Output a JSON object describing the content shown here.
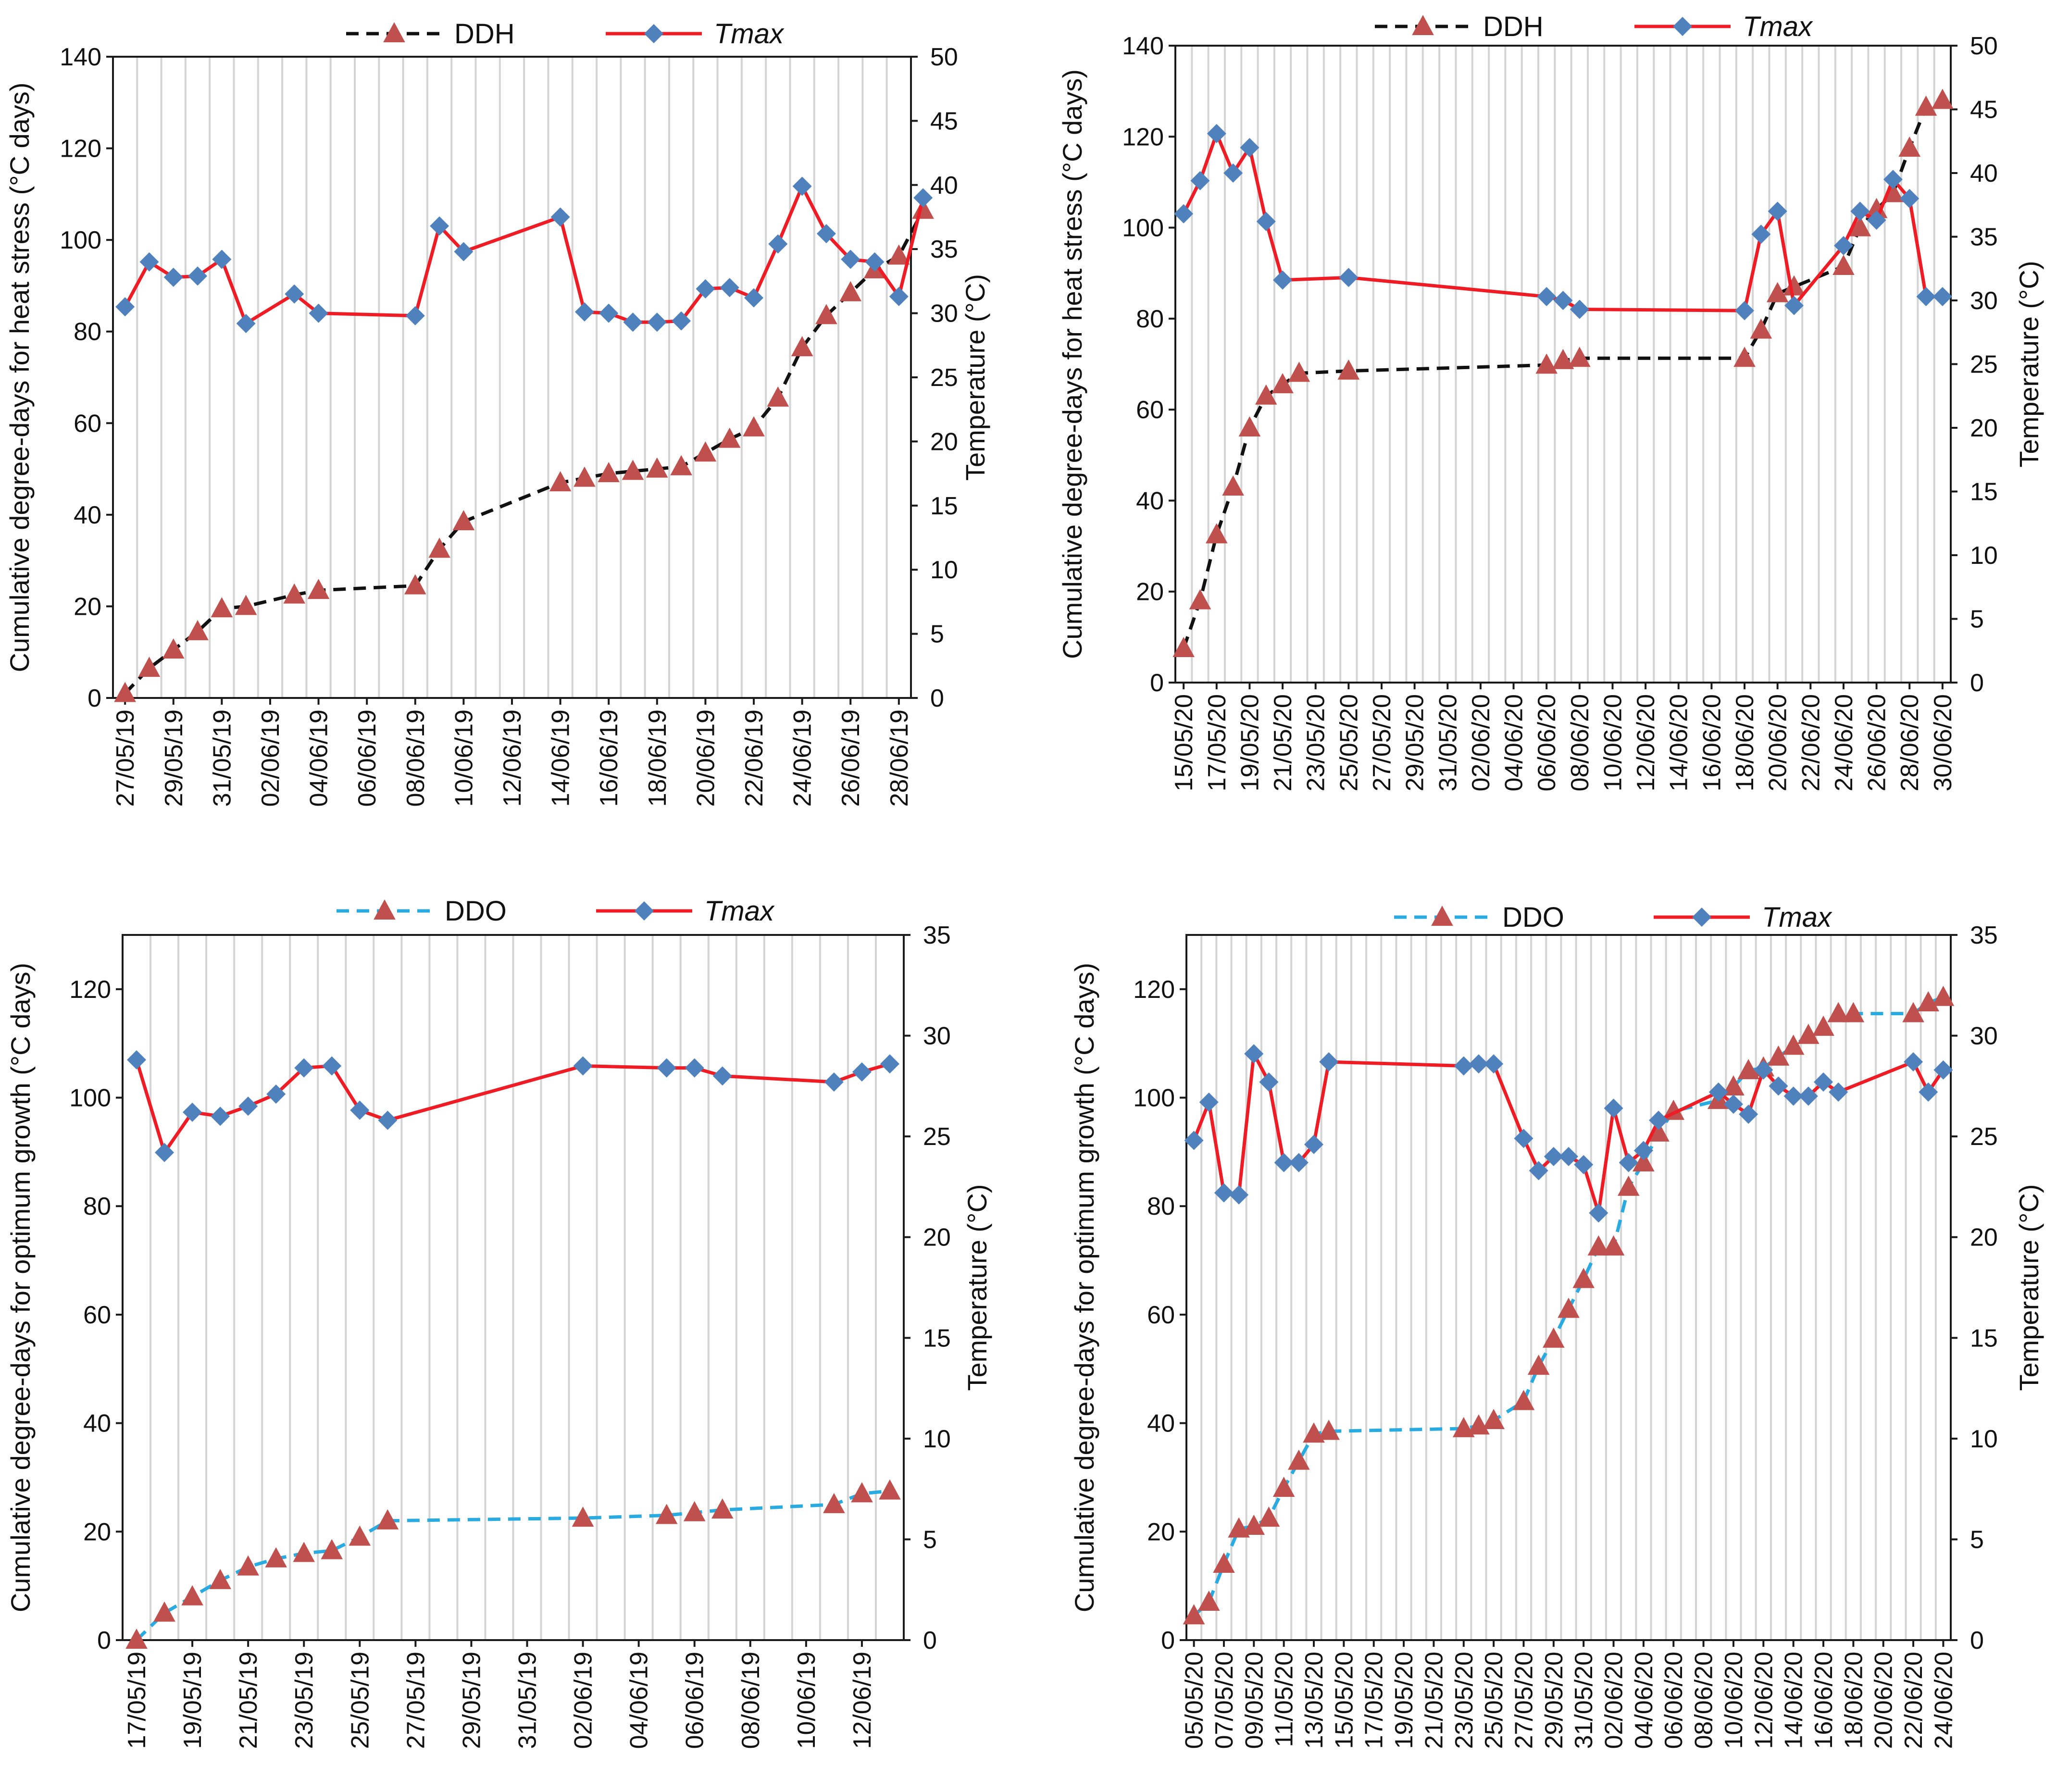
{
  "colors": {
    "ddh_line": "#111111",
    "ddo_line": "#29abe2",
    "tmax_line": "#ee1c25",
    "triangle": "#c0504d",
    "diamond": "#4f81bd"
  },
  "chart_data": [
    {
      "type": "line",
      "position": "top-left",
      "ylabel": "Cumulative degree-days for heat stress (°C days)",
      "y2label": "Temperature (°C)",
      "ylim": [
        0,
        140
      ],
      "ystep": 20,
      "y2lim": [
        0,
        50
      ],
      "y2step": 5,
      "xlim": [
        0,
        32
      ],
      "xticks": [
        {
          "i": 0,
          "label": "27/05/19"
        },
        {
          "i": 2,
          "label": "29/05/19"
        },
        {
          "i": 4,
          "label": "31/05/19"
        },
        {
          "i": 6,
          "label": "02/06/19"
        },
        {
          "i": 8,
          "label": "04/06/19"
        },
        {
          "i": 10,
          "label": "06/06/19"
        },
        {
          "i": 12,
          "label": "08/06/19"
        },
        {
          "i": 14,
          "label": "10/06/19"
        },
        {
          "i": 16,
          "label": "12/06/19"
        },
        {
          "i": 18,
          "label": "14/06/19"
        },
        {
          "i": 20,
          "label": "16/06/19"
        },
        {
          "i": 22,
          "label": "18/06/19"
        },
        {
          "i": 24,
          "label": "20/06/19"
        },
        {
          "i": 26,
          "label": "22/06/19"
        },
        {
          "i": 28,
          "label": "24/06/19"
        },
        {
          "i": 30,
          "label": "26/06/19"
        },
        {
          "i": 32,
          "label": "28/06/19"
        }
      ],
      "legend": [
        "DDH",
        "Tmax"
      ],
      "series": [
        {
          "name": "DDH",
          "axis": "left",
          "style": "dashed",
          "marker": "triangle",
          "x": [
            0,
            1,
            2,
            3,
            4,
            5,
            7,
            8,
            12,
            13,
            14,
            18,
            19,
            20,
            21,
            22,
            23,
            24,
            25,
            26,
            27,
            28,
            29,
            30,
            31,
            32,
            33
          ],
          "values": [
            1,
            6.5,
            10.5,
            14.5,
            19.5,
            20,
            22.5,
            23.5,
            24.5,
            32.5,
            38.5,
            47,
            48,
            49,
            49.5,
            50,
            50.5,
            53.5,
            56.5,
            59,
            65.5,
            76.5,
            83.5,
            88.5,
            93.5,
            96.5,
            106.5
          ]
        },
        {
          "name": "Tmax",
          "axis": "right",
          "style": "solid",
          "marker": "diamond",
          "x": [
            0,
            1,
            2,
            3,
            4,
            5,
            7,
            8,
            12,
            13,
            14,
            18,
            19,
            20,
            21,
            22,
            23,
            24,
            25,
            26,
            27,
            28,
            29,
            30,
            31,
            32,
            33
          ],
          "values": [
            30.5,
            34,
            32.8,
            32.9,
            34.2,
            29.2,
            31.5,
            30,
            29.8,
            36.8,
            34.8,
            37.5,
            30.1,
            30,
            29.3,
            29.3,
            29.4,
            31.9,
            32,
            31.2,
            35.4,
            39.9,
            36.2,
            34.2,
            34,
            31.3,
            39
          ]
        }
      ]
    },
    {
      "type": "line",
      "position": "top-right",
      "ylabel": "Cumulative degree-days for heat stress (°C days)",
      "y2label": "Temperature (°C)",
      "ylim": [
        0,
        140
      ],
      "ystep": 20,
      "y2lim": [
        0,
        50
      ],
      "y2step": 5,
      "xlim": [
        0,
        46
      ],
      "xticks": [
        {
          "i": 0,
          "label": "15/05/20"
        },
        {
          "i": 2,
          "label": "17/05/20"
        },
        {
          "i": 4,
          "label": "19/05/20"
        },
        {
          "i": 6,
          "label": "21/05/20"
        },
        {
          "i": 8,
          "label": "23/05/20"
        },
        {
          "i": 10,
          "label": "25/05/20"
        },
        {
          "i": 12,
          "label": "27/05/20"
        },
        {
          "i": 14,
          "label": "29/05/20"
        },
        {
          "i": 16,
          "label": "31/05/20"
        },
        {
          "i": 18,
          "label": "02/06/20"
        },
        {
          "i": 20,
          "label": "04/06/20"
        },
        {
          "i": 22,
          "label": "06/06/20"
        },
        {
          "i": 24,
          "label": "08/06/20"
        },
        {
          "i": 26,
          "label": "10/06/20"
        },
        {
          "i": 28,
          "label": "12/06/20"
        },
        {
          "i": 30,
          "label": "14/06/20"
        },
        {
          "i": 32,
          "label": "16/06/20"
        },
        {
          "i": 34,
          "label": "18/06/20"
        },
        {
          "i": 36,
          "label": "20/06/20"
        },
        {
          "i": 38,
          "label": "22/06/20"
        },
        {
          "i": 40,
          "label": "24/06/20"
        },
        {
          "i": 42,
          "label": "26/06/20"
        },
        {
          "i": 44,
          "label": "28/06/20"
        },
        {
          "i": 46,
          "label": "30/06/20"
        }
      ],
      "legend": [
        "DDH",
        "Tmax"
      ],
      "series": [
        {
          "name": "DDH",
          "axis": "left",
          "style": "dashed",
          "marker": "triangle",
          "x": [
            0,
            1,
            2,
            3,
            4,
            5,
            6,
            7,
            10,
            22,
            23,
            24,
            34,
            35,
            36,
            37,
            40,
            41,
            42,
            43,
            44,
            45,
            46
          ],
          "values": [
            7.5,
            18,
            32.5,
            43,
            56,
            63,
            65.5,
            68,
            68.5,
            69.8,
            70.8,
            71.3,
            71.3,
            77.5,
            85.5,
            87,
            91.5,
            100,
            104,
            107.5,
            117.5,
            126.5,
            128
          ]
        },
        {
          "name": "Tmax",
          "axis": "right",
          "style": "solid",
          "marker": "diamond",
          "x": [
            0,
            1,
            2,
            3,
            4,
            5,
            6,
            10,
            22,
            23,
            24,
            34,
            35,
            36,
            37,
            40,
            41,
            42,
            43,
            44,
            45,
            46
          ],
          "values": [
            36.8,
            39.4,
            43.1,
            40,
            42,
            36.2,
            31.6,
            31.8,
            30.3,
            30,
            29.3,
            29.2,
            35.2,
            37,
            29.6,
            34.3,
            37,
            36.3,
            39.5,
            38,
            30.3,
            30.3
          ]
        }
      ]
    },
    {
      "type": "line",
      "position": "bottom-left",
      "ylabel": "Cumulative degree-days for optimum growth (°C days)",
      "y2label": "Temperature (°C)",
      "ylim": [
        0,
        130
      ],
      "ystep": 20,
      "y2lim": [
        0,
        35
      ],
      "y2step": 5,
      "xlim": [
        0,
        27
      ],
      "xticks": [
        {
          "i": 0,
          "label": "17/05/19"
        },
        {
          "i": 2,
          "label": "19/05/19"
        },
        {
          "i": 4,
          "label": "21/05/19"
        },
        {
          "i": 6,
          "label": "23/05/19"
        },
        {
          "i": 8,
          "label": "25/05/19"
        },
        {
          "i": 10,
          "label": "27/05/19"
        },
        {
          "i": 12,
          "label": "29/05/19"
        },
        {
          "i": 14,
          "label": "31/05/19"
        },
        {
          "i": 16,
          "label": "02/06/19"
        },
        {
          "i": 18,
          "label": "04/06/19"
        },
        {
          "i": 20,
          "label": "06/06/19"
        },
        {
          "i": 22,
          "label": "08/06/19"
        },
        {
          "i": 24,
          "label": "10/06/19"
        },
        {
          "i": 26,
          "label": "12/06/19"
        }
      ],
      "legend": [
        "DDO",
        "Tmax"
      ],
      "series": [
        {
          "name": "DDO",
          "axis": "left",
          "style": "dashed",
          "marker": "triangle",
          "x": [
            0,
            1,
            2,
            3,
            4,
            5,
            6,
            7,
            8,
            9,
            16,
            19,
            20,
            21,
            25,
            26,
            27
          ],
          "values": [
            0,
            5,
            8,
            11,
            13.5,
            15,
            16,
            16.5,
            19,
            22,
            22.5,
            23,
            23.5,
            24,
            25,
            27,
            27.5
          ]
        },
        {
          "name": "Tmax",
          "axis": "right",
          "style": "solid",
          "marker": "diamond",
          "x": [
            0,
            1,
            2,
            3,
            4,
            5,
            6,
            7,
            8,
            9,
            16,
            19,
            20,
            21,
            25,
            26,
            27
          ],
          "values": [
            28.8,
            24.2,
            26.2,
            26,
            26.5,
            27.1,
            28.4,
            28.5,
            26.3,
            25.8,
            28.5,
            28.4,
            28.4,
            28,
            27.7,
            28.2,
            28.6
          ]
        }
      ]
    },
    {
      "type": "line",
      "position": "bottom-right",
      "ylabel": "Cumulative degree-days for optimum growth (°C days)",
      "y2label": "Temperature (°C)",
      "ylim": [
        0,
        130
      ],
      "ystep": 20,
      "y2lim": [
        0,
        35
      ],
      "y2step": 5,
      "xlim": [
        0,
        50
      ],
      "xticks": [
        {
          "i": 0,
          "label": "05/05/20"
        },
        {
          "i": 2,
          "label": "07/05/20"
        },
        {
          "i": 4,
          "label": "09/05/20"
        },
        {
          "i": 6,
          "label": "11/05/20"
        },
        {
          "i": 8,
          "label": "13/05/20"
        },
        {
          "i": 10,
          "label": "15/05/20"
        },
        {
          "i": 12,
          "label": "17/05/20"
        },
        {
          "i": 14,
          "label": "19/05/20"
        },
        {
          "i": 16,
          "label": "21/05/20"
        },
        {
          "i": 18,
          "label": "23/05/20"
        },
        {
          "i": 20,
          "label": "25/05/20"
        },
        {
          "i": 22,
          "label": "27/05/20"
        },
        {
          "i": 24,
          "label": "29/05/20"
        },
        {
          "i": 26,
          "label": "31/05/20"
        },
        {
          "i": 28,
          "label": "02/06/20"
        },
        {
          "i": 30,
          "label": "04/06/20"
        },
        {
          "i": 32,
          "label": "06/06/20"
        },
        {
          "i": 34,
          "label": "08/06/20"
        },
        {
          "i": 36,
          "label": "10/06/20"
        },
        {
          "i": 38,
          "label": "12/06/20"
        },
        {
          "i": 40,
          "label": "14/06/20"
        },
        {
          "i": 42,
          "label": "16/06/20"
        },
        {
          "i": 44,
          "label": "18/06/20"
        },
        {
          "i": 46,
          "label": "20/06/20"
        },
        {
          "i": 48,
          "label": "22/06/20"
        },
        {
          "i": 50,
          "label": "24/06/20"
        }
      ],
      "legend": [
        "DDO",
        "Tmax"
      ],
      "series": [
        {
          "name": "DDO",
          "axis": "left",
          "style": "dashed",
          "marker": "triangle",
          "x": [
            0,
            1,
            2,
            3,
            4,
            5,
            6,
            7,
            8,
            9,
            18,
            19,
            20,
            22,
            23,
            24,
            25,
            26,
            27,
            28,
            29,
            30,
            31,
            32,
            35,
            36,
            37,
            38,
            39,
            40,
            41,
            42,
            43,
            44,
            48,
            49,
            50
          ],
          "values": [
            4.5,
            7,
            14,
            20.5,
            21,
            22.5,
            28,
            33,
            38,
            38.5,
            39,
            39.5,
            40.5,
            44,
            50.5,
            55.5,
            61,
            66.5,
            72.5,
            72.5,
            83.5,
            88,
            93.5,
            97.5,
            99.5,
            102,
            105,
            105.5,
            107.5,
            109.5,
            111.5,
            113,
            115.5,
            115.5,
            115.5,
            117.5,
            118.5
          ]
        },
        {
          "name": "Tmax",
          "axis": "right",
          "style": "solid",
          "marker": "diamond",
          "x": [
            0,
            1,
            2,
            3,
            4,
            5,
            6,
            7,
            8,
            9,
            18,
            19,
            20,
            22,
            23,
            24,
            25,
            26,
            27,
            28,
            29,
            30,
            31,
            35,
            36,
            37,
            38,
            39,
            40,
            41,
            42,
            43,
            48,
            49,
            50
          ],
          "values": [
            24.8,
            26.7,
            22.2,
            22.1,
            29.1,
            27.7,
            23.7,
            23.7,
            24.6,
            28.7,
            28.5,
            28.6,
            28.6,
            24.9,
            23.3,
            24,
            24,
            23.6,
            21.2,
            26.4,
            23.7,
            24.3,
            25.8,
            27.2,
            26.6,
            26.1,
            28.3,
            27.5,
            27,
            27,
            27.7,
            27.2,
            28.7,
            27.2,
            28.3
          ]
        }
      ]
    }
  ]
}
